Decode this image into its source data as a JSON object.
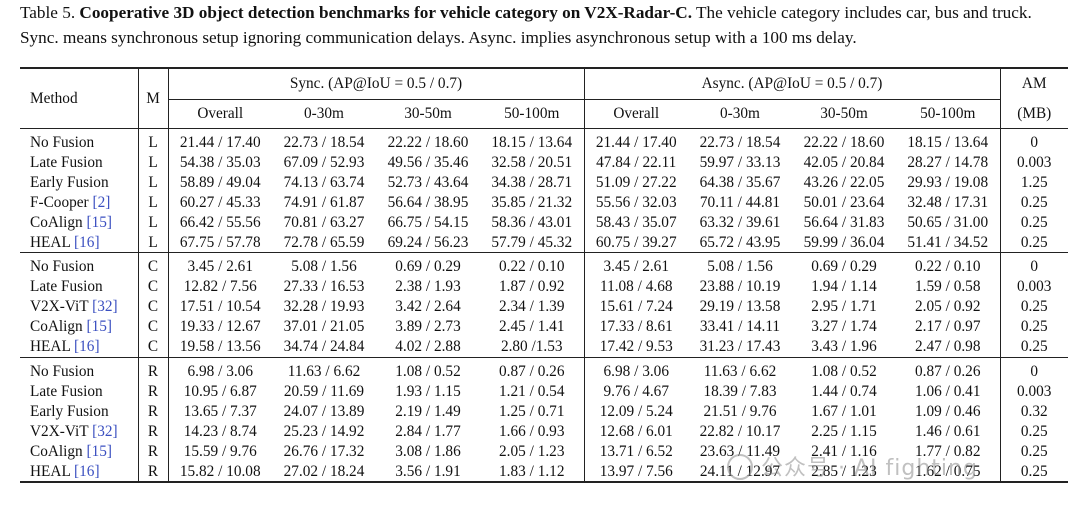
{
  "caption": {
    "label": "Table 5.",
    "title": "Cooperative 3D object detection benchmarks for vehicle category on V2X-Radar-C.",
    "rest": "The vehicle category includes car, bus and truck. Sync. means synchronous setup ignoring communication delays. Async. implies asynchronous setup with a 100 ms delay."
  },
  "header": {
    "method": "Method",
    "m": "M",
    "sync": "Sync. (AP@IoU = 0.5 / 0.7)",
    "async": "Async. (AP@IoU = 0.5 / 0.7)",
    "am_top": "AM",
    "am_bottom": "(MB)",
    "ranges": [
      "Overall",
      "0-30m",
      "30-50m",
      "50-100m"
    ]
  },
  "groups": [
    {
      "rows": [
        {
          "method": "No Fusion",
          "cite": "",
          "m": "L",
          "sync": [
            "21.44 / 17.40",
            "22.73 / 18.54",
            "22.22 / 18.60",
            "18.15 / 13.64"
          ],
          "async": [
            "21.44 / 17.40",
            "22.73 / 18.54",
            "22.22 / 18.60",
            "18.15 / 13.64"
          ],
          "am": "0"
        },
        {
          "method": "Late Fusion",
          "cite": "",
          "m": "L",
          "sync": [
            "54.38 / 35.03",
            "67.09 / 52.93",
            "49.56 / 35.46",
            "32.58 / 20.51"
          ],
          "async": [
            "47.84 / 22.11",
            "59.97 / 33.13",
            "42.05 / 20.84",
            "28.27 / 14.78"
          ],
          "am": "0.003"
        },
        {
          "method": "Early Fusion",
          "cite": "",
          "m": "L",
          "sync": [
            "58.89 / 49.04",
            "74.13 / 63.74",
            "52.73 / 43.64",
            "34.38 / 28.71"
          ],
          "async": [
            "51.09 / 27.22",
            "64.38 / 35.67",
            "43.26 / 22.05",
            "29.93 / 19.08"
          ],
          "am": "1.25"
        },
        {
          "method": "F-Cooper",
          "cite": "[2]",
          "m": "L",
          "sync": [
            "60.27 / 45.33",
            "74.91 / 61.87",
            "56.64 / 38.95",
            "35.85 / 21.32"
          ],
          "async": [
            "55.56 / 32.03",
            "70.11 / 44.81",
            "50.01 / 23.64",
            "32.48 / 17.31"
          ],
          "am": "0.25"
        },
        {
          "method": "CoAlign",
          "cite": "[15]",
          "m": "L",
          "sync": [
            "66.42 / 55.56",
            "70.81 / 63.27",
            "66.75 / 54.15",
            "58.36 / 43.01"
          ],
          "async": [
            "58.43 / 35.07",
            "63.32 / 39.61",
            "56.64 / 31.83",
            "50.65 / 31.00"
          ],
          "am": "0.25"
        },
        {
          "method": "HEAL",
          "cite": "[16]",
          "m": "L",
          "sync": [
            "67.75 / 57.78",
            "72.78 / 65.59",
            "69.24 / 56.23",
            "57.79 / 45.32"
          ],
          "async": [
            "60.75 / 39.27",
            "65.72 / 43.95",
            "59.99 / 36.04",
            "51.41 / 34.52"
          ],
          "am": "0.25"
        }
      ]
    },
    {
      "rows": [
        {
          "method": "No Fusion",
          "cite": "",
          "m": "C",
          "sync": [
            "3.45 / 2.61",
            "5.08 / 1.56",
            "0.69 / 0.29",
            "0.22 / 0.10"
          ],
          "async": [
            "3.45 / 2.61",
            "5.08 / 1.56",
            "0.69 / 0.29",
            "0.22 / 0.10"
          ],
          "am": "0"
        },
        {
          "method": "Late Fusion",
          "cite": "",
          "m": "C",
          "sync": [
            "12.82 / 7.56",
            "27.33 / 16.53",
            "2.38 / 1.93",
            "1.87 / 0.92"
          ],
          "async": [
            "11.08 / 4.68",
            "23.88 / 10.19",
            "1.94 / 1.14",
            "1.59 / 0.58"
          ],
          "am": "0.003"
        },
        {
          "method": "V2X-ViT",
          "cite": "[32]",
          "m": "C",
          "sync": [
            "17.51 / 10.54",
            "32.28 / 19.93",
            "3.42 / 2.64",
            "2.34 / 1.39"
          ],
          "async": [
            "15.61 / 7.24",
            "29.19 / 13.58",
            "2.95 / 1.71",
            "2.05 / 0.92"
          ],
          "am": "0.25"
        },
        {
          "method": "CoAlign",
          "cite": "[15]",
          "m": "C",
          "sync": [
            "19.33 / 12.67",
            "37.01 / 21.05",
            "3.89 / 2.73",
            "2.45 / 1.41"
          ],
          "async": [
            "17.33 / 8.61",
            "33.41 / 14.11",
            "3.27 / 1.74",
            "2.17 / 0.97"
          ],
          "am": "0.25"
        },
        {
          "method": "HEAL",
          "cite": "[16]",
          "m": "C",
          "sync": [
            "19.58 / 13.56",
            "34.74 / 24.84",
            "4.02 / 2.88",
            "2.80 /1.53"
          ],
          "async": [
            "17.42 / 9.53",
            "31.23 / 17.43",
            "3.43 / 1.96",
            "2.47 / 0.98"
          ],
          "am": "0.25"
        }
      ]
    },
    {
      "rows": [
        {
          "method": "No Fusion",
          "cite": "",
          "m": "R",
          "sync": [
            "6.98 / 3.06",
            "11.63 / 6.62",
            "1.08 / 0.52",
            "0.87 / 0.26"
          ],
          "async": [
            "6.98 / 3.06",
            "11.63 / 6.62",
            "1.08 / 0.52",
            "0.87 / 0.26"
          ],
          "am": "0"
        },
        {
          "method": "Late Fusion",
          "cite": "",
          "m": "R",
          "sync": [
            "10.95 / 6.87",
            "20.59 / 11.69",
            "1.93 / 1.15",
            "1.21 / 0.54"
          ],
          "async": [
            "9.76 / 4.67",
            "18.39 / 7.83",
            "1.44 / 0.74",
            "1.06 / 0.41"
          ],
          "am": "0.003"
        },
        {
          "method": "Early Fusion",
          "cite": "",
          "m": "R",
          "sync": [
            "13.65 / 7.37",
            "24.07 / 13.89",
            "2.19 / 1.49",
            "1.25 / 0.71"
          ],
          "async": [
            "12.09 / 5.24",
            "21.51 / 9.76",
            "1.67 / 1.01",
            "1.09 / 0.46"
          ],
          "am": "0.32"
        },
        {
          "method": "V2X-ViT",
          "cite": "[32]",
          "m": "R",
          "sync": [
            "14.23 / 8.74",
            "25.23 / 14.92",
            "2.84 / 1.77",
            "1.66 / 0.93"
          ],
          "async": [
            "12.68 / 6.01",
            "22.82 / 10.17",
            "2.25 / 1.15",
            "1.46 / 0.61"
          ],
          "am": "0.25"
        },
        {
          "method": "CoAlign",
          "cite": "[15]",
          "m": "R",
          "sync": [
            "15.59 / 9.76",
            "26.76 / 17.32",
            "3.08 / 1.86",
            "2.05 / 1.23"
          ],
          "async": [
            "13.71 / 6.52",
            "23.63 / 11.49",
            "2.41 / 1.16",
            "1.77 / 0.82"
          ],
          "am": "0.25"
        },
        {
          "method": "HEAL",
          "cite": "[16]",
          "m": "R",
          "sync": [
            "15.82 / 10.08",
            "27.02 / 18.24",
            "3.56 / 1.91",
            "1.83 / 1.12"
          ],
          "async": [
            "13.97 / 7.56",
            "24.11 / 12.97",
            "2.85 / 1.23",
            "1.62 / 0.75"
          ],
          "am": "0.25"
        }
      ]
    }
  ],
  "watermark": {
    "text": "公众号 · AI fighting",
    "icon": "wechat-icon"
  }
}
